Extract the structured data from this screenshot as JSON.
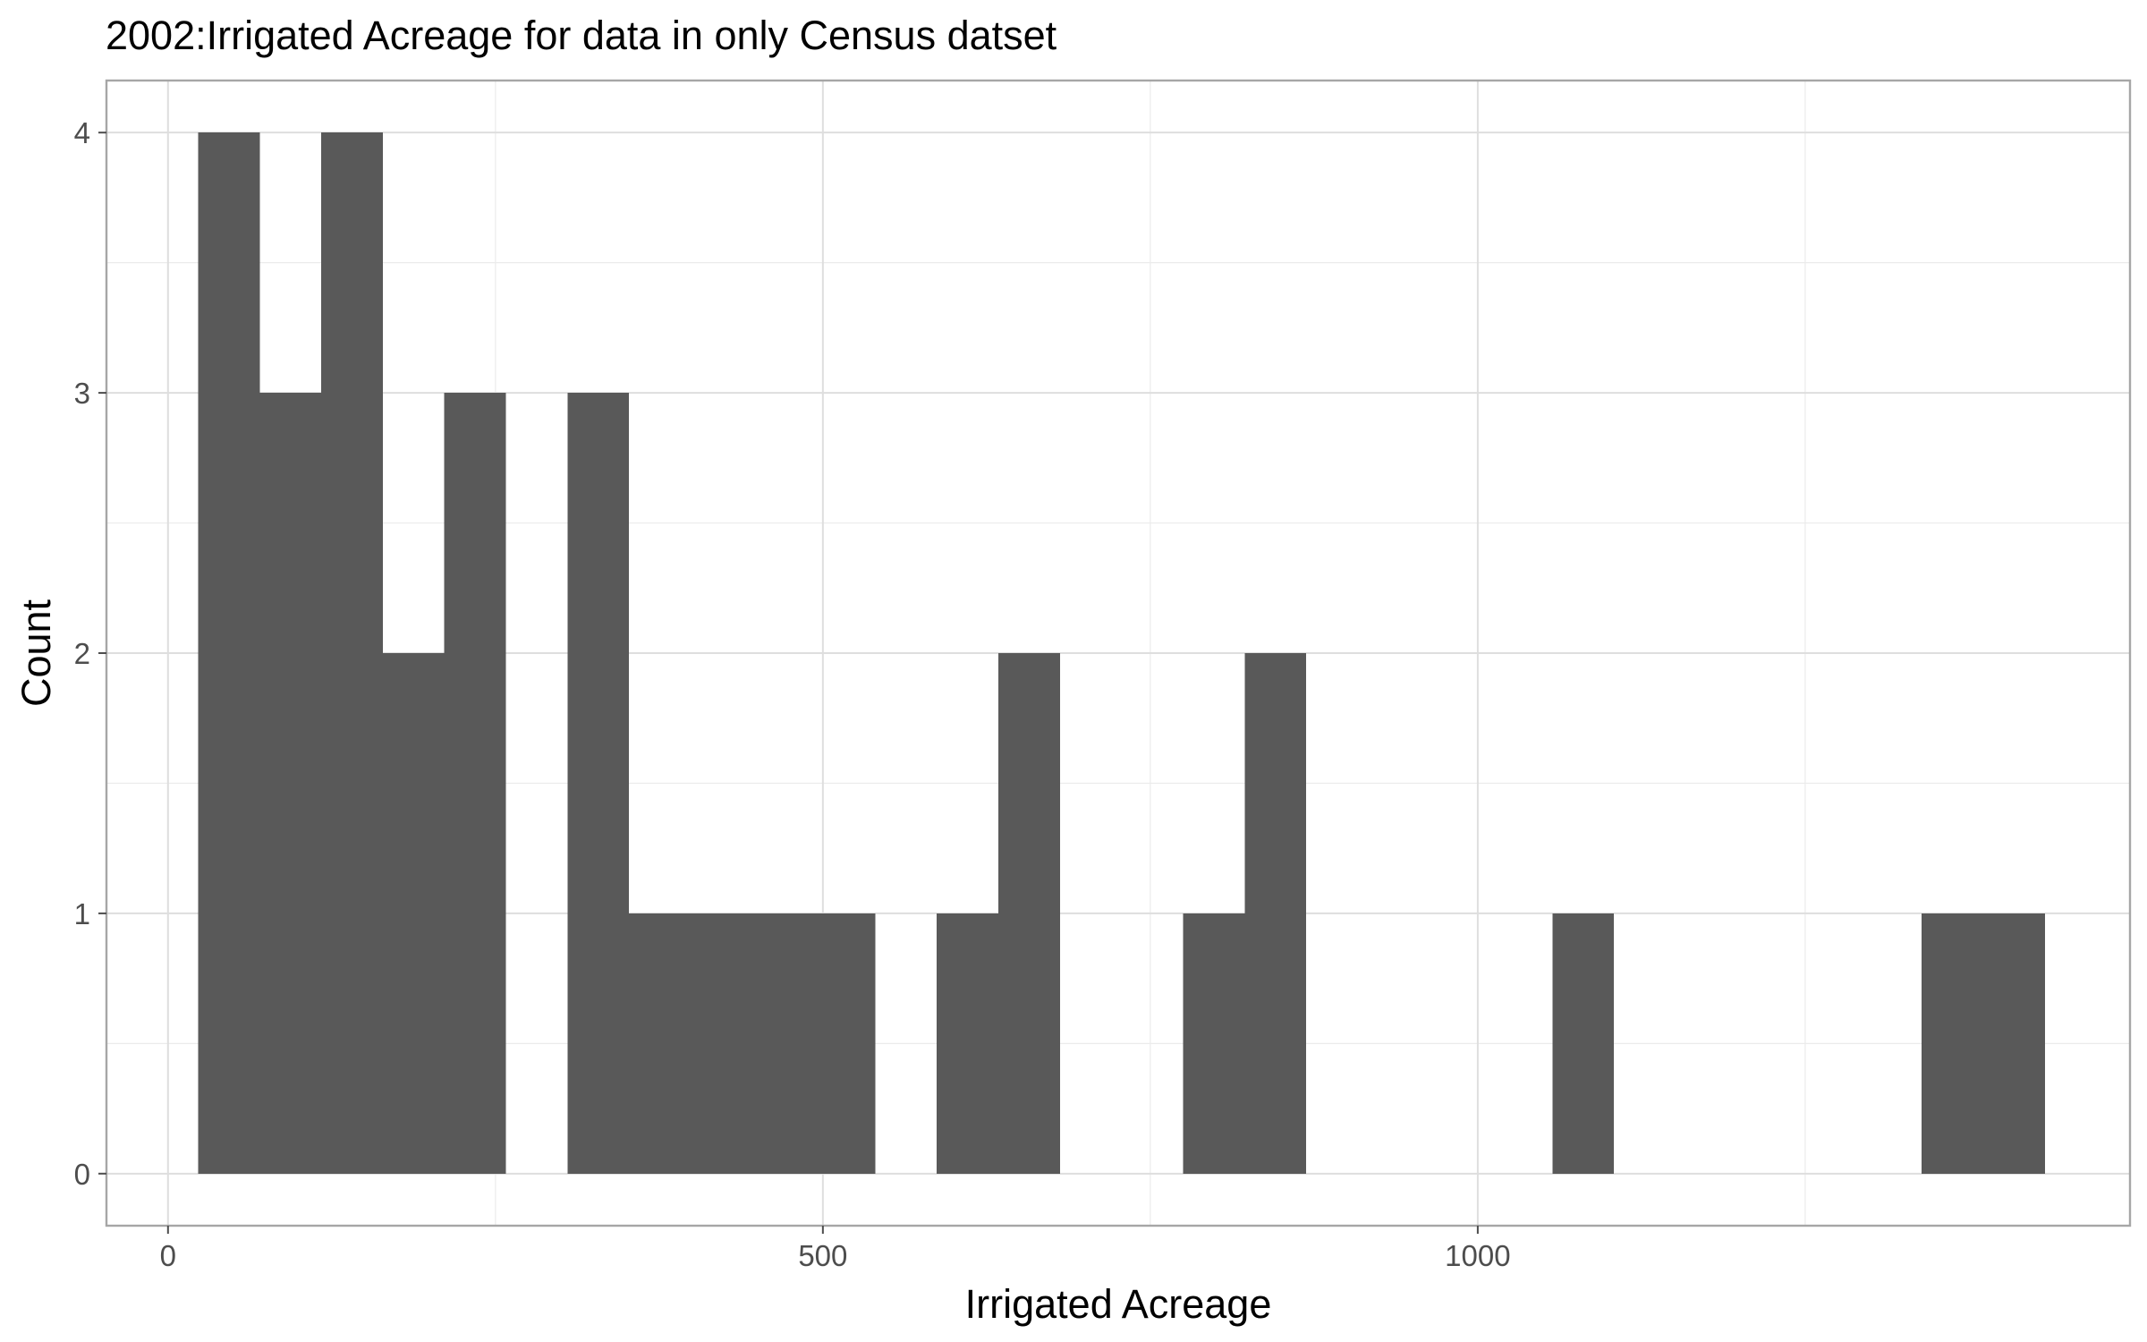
{
  "chart_data": {
    "type": "bar",
    "title": "2002:Irrigated Acreage for data in only Census datset",
    "xlabel": "Irrigated Acreage",
    "ylabel": "Count",
    "xlim": [
      -47,
      1498
    ],
    "ylim": [
      -0.2,
      4.2
    ],
    "x_ticks": [
      0,
      500,
      1000
    ],
    "x_tick_labels": [
      "0",
      "500",
      "1000"
    ],
    "y_ticks": [
      0,
      1,
      2,
      3,
      4
    ],
    "y_tick_labels": [
      "0",
      "1",
      "2",
      "3",
      "4"
    ],
    "bin_width": 47,
    "bins": [
      {
        "x0": 23,
        "x1": 70,
        "count": 4
      },
      {
        "x0": 70,
        "x1": 117,
        "count": 3
      },
      {
        "x0": 117,
        "x1": 164,
        "count": 4
      },
      {
        "x0": 164,
        "x1": 211,
        "count": 2
      },
      {
        "x0": 211,
        "x1": 258,
        "count": 3
      },
      {
        "x0": 258,
        "x1": 305,
        "count": 0
      },
      {
        "x0": 305,
        "x1": 352,
        "count": 3
      },
      {
        "x0": 352,
        "x1": 399,
        "count": 1
      },
      {
        "x0": 399,
        "x1": 446,
        "count": 1
      },
      {
        "x0": 446,
        "x1": 493,
        "count": 1
      },
      {
        "x0": 493,
        "x1": 540,
        "count": 1
      },
      {
        "x0": 540,
        "x1": 587,
        "count": 0
      },
      {
        "x0": 587,
        "x1": 634,
        "count": 1
      },
      {
        "x0": 634,
        "x1": 681,
        "count": 2
      },
      {
        "x0": 681,
        "x1": 728,
        "count": 0
      },
      {
        "x0": 728,
        "x1": 775,
        "count": 0
      },
      {
        "x0": 775,
        "x1": 822,
        "count": 1
      },
      {
        "x0": 822,
        "x1": 869,
        "count": 2
      },
      {
        "x0": 869,
        "x1": 916,
        "count": 0
      },
      {
        "x0": 916,
        "x1": 963,
        "count": 0
      },
      {
        "x0": 963,
        "x1": 1010,
        "count": 0
      },
      {
        "x0": 1010,
        "x1": 1057,
        "count": 0
      },
      {
        "x0": 1057,
        "x1": 1104,
        "count": 1
      },
      {
        "x0": 1104,
        "x1": 1151,
        "count": 0
      },
      {
        "x0": 1151,
        "x1": 1198,
        "count": 0
      },
      {
        "x0": 1198,
        "x1": 1245,
        "count": 0
      },
      {
        "x0": 1245,
        "x1": 1292,
        "count": 0
      },
      {
        "x0": 1292,
        "x1": 1339,
        "count": 0
      },
      {
        "x0": 1339,
        "x1": 1386,
        "count": 1
      },
      {
        "x0": 1386,
        "x1": 1433,
        "count": 1
      }
    ],
    "bar_color": "#595959",
    "grid": true,
    "legend": "none"
  }
}
